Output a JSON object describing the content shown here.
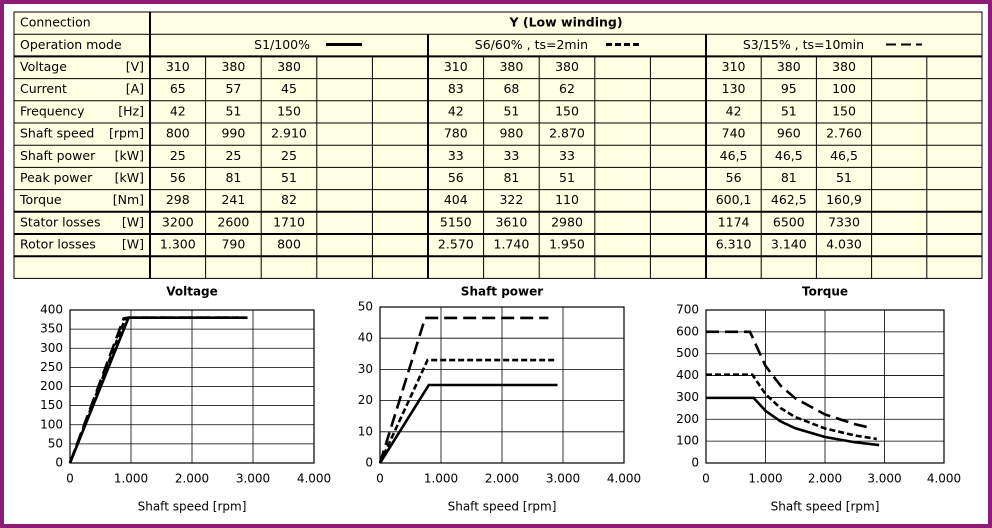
{
  "table": {
    "connection": {
      "label": "Connection",
      "value": "Y (Low winding)"
    },
    "operation_mode": {
      "label": "Operation mode",
      "modes": [
        "S1/100%",
        "S6/60% , ts=2min",
        "S3/15% , ts=10min"
      ]
    },
    "rows": [
      {
        "label": "Voltage",
        "unit": "[V]",
        "values": [
          [
            "310",
            "380",
            "380"
          ],
          [
            "310",
            "380",
            "380"
          ],
          [
            "310",
            "380",
            "380"
          ]
        ]
      },
      {
        "label": "Current",
        "unit": "[A]",
        "values": [
          [
            "65",
            "57",
            "45"
          ],
          [
            "83",
            "68",
            "62"
          ],
          [
            "130",
            "95",
            "100"
          ]
        ]
      },
      {
        "label": "Frequency",
        "unit": "[Hz]",
        "values": [
          [
            "42",
            "51",
            "150"
          ],
          [
            "42",
            "51",
            "150"
          ],
          [
            "42",
            "51",
            "150"
          ]
        ]
      },
      {
        "label": "Shaft speed",
        "unit": "[rpm]",
        "values": [
          [
            "800",
            "990",
            "2.910"
          ],
          [
            "780",
            "980",
            "2.870"
          ],
          [
            "740",
            "960",
            "2.760"
          ]
        ]
      },
      {
        "label": "Shaft power",
        "unit": "[kW]",
        "values": [
          [
            "25",
            "25",
            "25"
          ],
          [
            "33",
            "33",
            "33"
          ],
          [
            "46,5",
            "46,5",
            "46,5"
          ]
        ]
      },
      {
        "label": "Peak power",
        "unit": "[kW]",
        "values": [
          [
            "56",
            "81",
            "51"
          ],
          [
            "56",
            "81",
            "51"
          ],
          [
            "56",
            "81",
            "51"
          ]
        ]
      },
      {
        "label": "Torque",
        "unit": "[Nm]",
        "values": [
          [
            "298",
            "241",
            "82"
          ],
          [
            "404",
            "322",
            "110"
          ],
          [
            "600,1",
            "462,5",
            "160,9"
          ]
        ]
      },
      {
        "label": "Stator losses",
        "unit": "[W]",
        "values": [
          [
            "3200",
            "2600",
            "1710"
          ],
          [
            "5150",
            "3610",
            "2980"
          ],
          [
            "1174",
            "6500",
            "7330"
          ]
        ]
      },
      {
        "label": "Rotor losses",
        "unit": "[W]",
        "values": [
          [
            "1.300",
            "790",
            "800"
          ],
          [
            "2.570",
            "1.740",
            "1.950"
          ],
          [
            "6.310",
            "3.140",
            "4.030"
          ]
        ]
      }
    ]
  },
  "chart_data": [
    {
      "type": "line",
      "title": "Voltage",
      "x_label": "Shaft speed [rpm]",
      "xlim": [
        0,
        4000
      ],
      "xticks": [
        0,
        {
          "value": 1000,
          "label": "1.000"
        },
        {
          "value": 2000,
          "label": "2.000"
        },
        {
          "value": 3000,
          "label": "3.000"
        },
        {
          "value": 4000,
          "label": "4.000"
        }
      ],
      "ylim": [
        0,
        400
      ],
      "yticks": [
        0,
        50,
        100,
        150,
        200,
        250,
        300,
        350,
        400
      ],
      "grid": true,
      "series": [
        {
          "color": "#000000",
          "line_style": "solid",
          "x": [
            0,
            960,
            2910
          ],
          "values": [
            0,
            380,
            380
          ]
        },
        {
          "color": "#000000",
          "line_style": "short-dash",
          "x": [
            0,
            900,
            980,
            2870
          ],
          "values": [
            0,
            375,
            380,
            380
          ]
        },
        {
          "color": "#000000",
          "line_style": "long-dash",
          "x": [
            0,
            880,
            960,
            2760
          ],
          "values": [
            0,
            378,
            380,
            380
          ]
        }
      ]
    },
    {
      "type": "line",
      "title": "Shaft power",
      "x_label": "Shaft speed [rpm]",
      "xlim": [
        0,
        4000
      ],
      "xticks": [
        0,
        {
          "value": 1000,
          "label": "1.000"
        },
        {
          "value": 2000,
          "label": "2.000"
        },
        {
          "value": 3000,
          "label": "3.000"
        },
        {
          "value": 4000,
          "label": "4.000"
        }
      ],
      "ylim": [
        0,
        50
      ],
      "yticks": [
        0,
        10,
        20,
        30,
        40,
        50
      ],
      "grid": true,
      "series": [
        {
          "color": "#000000",
          "line_style": "solid",
          "x": [
            0,
            800,
            2910
          ],
          "values": [
            0,
            25,
            25
          ]
        },
        {
          "color": "#000000",
          "line_style": "short-dash",
          "x": [
            0,
            780,
            2870
          ],
          "values": [
            0,
            33,
            33
          ]
        },
        {
          "color": "#000000",
          "line_style": "long-dash",
          "x": [
            0,
            740,
            2760
          ],
          "values": [
            0,
            46.5,
            46.5
          ]
        }
      ]
    },
    {
      "type": "line",
      "title": "Torque",
      "x_label": "Shaft speed [rpm]",
      "xlim": [
        0,
        4000
      ],
      "xticks": [
        0,
        {
          "value": 1000,
          "label": "1.000"
        },
        {
          "value": 2000,
          "label": "2.000"
        },
        {
          "value": 3000,
          "label": "3.000"
        },
        {
          "value": 4000,
          "label": "4.000"
        }
      ],
      "ylim": [
        0,
        700
      ],
      "yticks": [
        0,
        100,
        200,
        300,
        400,
        500,
        600,
        700
      ],
      "grid": true,
      "series": [
        {
          "color": "#000000",
          "line_style": "solid",
          "x": [
            0,
            800,
            1000,
            1250,
            1500,
            2000,
            2500,
            2910
          ],
          "values": [
            298,
            298,
            239,
            191,
            159,
            119,
            95,
            82
          ]
        },
        {
          "color": "#000000",
          "line_style": "short-dash",
          "x": [
            0,
            780,
            1000,
            1250,
            1500,
            2000,
            2500,
            2870
          ],
          "values": [
            404,
            404,
            315,
            252,
            210,
            158,
            126,
            110
          ]
        },
        {
          "color": "#000000",
          "line_style": "long-dash",
          "x": [
            0,
            740,
            1000,
            1250,
            1500,
            2000,
            2500,
            2760
          ],
          "values": [
            600,
            600,
            444,
            355,
            296,
            222,
            178,
            161
          ]
        }
      ]
    }
  ]
}
